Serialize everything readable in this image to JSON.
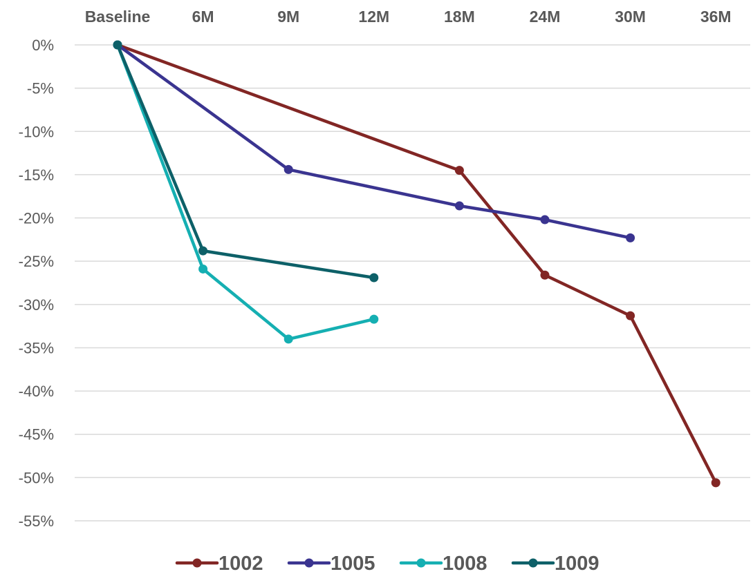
{
  "chart_data": {
    "type": "line",
    "title": "",
    "xlabel": "",
    "ylabel": "",
    "categories": [
      "Baseline",
      "6M",
      "9M",
      "12M",
      "18M",
      "24M",
      "30M",
      "36M"
    ],
    "y_tick_labels": [
      "0%",
      "-5%",
      "-10%",
      "-15%",
      "-20%",
      "-25%",
      "-30%",
      "-35%",
      "-40%",
      "-45%",
      "-50%",
      "-55%"
    ],
    "ylim": [
      -55,
      0
    ],
    "grid": true,
    "x_axis_position": "top",
    "legend_position": "bottom",
    "series": [
      {
        "name": "1002",
        "color": "#822624",
        "values": [
          0,
          null,
          null,
          null,
          -14.5,
          -26.6,
          -31.3,
          -50.6
        ]
      },
      {
        "name": "1005",
        "color": "#3A3490",
        "values": [
          0,
          null,
          -14.4,
          null,
          -18.6,
          -20.2,
          -22.3,
          null
        ]
      },
      {
        "name": "1008",
        "color": "#15AFB2",
        "values": [
          0,
          -25.9,
          -34.0,
          -31.7,
          null,
          null,
          null,
          null
        ]
      },
      {
        "name": "1009",
        "color": "#0D6068",
        "values": [
          0,
          -23.8,
          null,
          -26.9,
          null,
          null,
          null,
          null
        ]
      }
    ]
  }
}
